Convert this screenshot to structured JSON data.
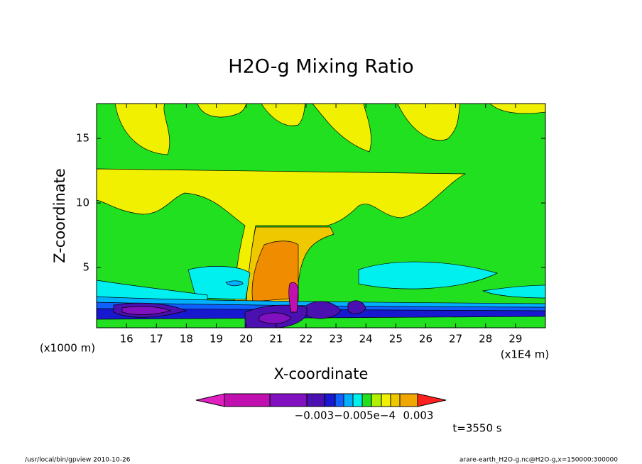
{
  "chart_data": {
    "type": "contour",
    "title": "H2O-g Mixing Ratio",
    "x_label": "X-coordinate",
    "y_label": "Z-coordinate",
    "x_unit_label": "(x1E4 m)",
    "y_unit_label": "(x1000 m)",
    "xlim": [
      15,
      30
    ],
    "ylim": [
      0.33,
      17.7
    ],
    "xticks": [
      16,
      17,
      18,
      19,
      20,
      21,
      22,
      23,
      24,
      25,
      26,
      27,
      28,
      29
    ],
    "yticks": [
      5,
      10,
      15
    ],
    "colorbar": {
      "colors": [
        "#e020c0",
        "#c010b0",
        "#8010c0",
        "#4a10b0",
        "#1818d0",
        "#1060ff",
        "#00b0ff",
        "#00f0f0",
        "#20e020",
        "#b0f000",
        "#f0f000",
        "#f0c800",
        "#f0a800",
        "#f08c00",
        "#ff2020"
      ],
      "tick_labels": [
        "−0.003−0.005e−4",
        "0.003"
      ]
    },
    "time_label": "t=3550 s",
    "footer_left": "/usr/local/bin/gpview  2010-10-26",
    "footer_right": "arare-earth_H2O-g.nc@H2O-g,x=150000:300000"
  }
}
